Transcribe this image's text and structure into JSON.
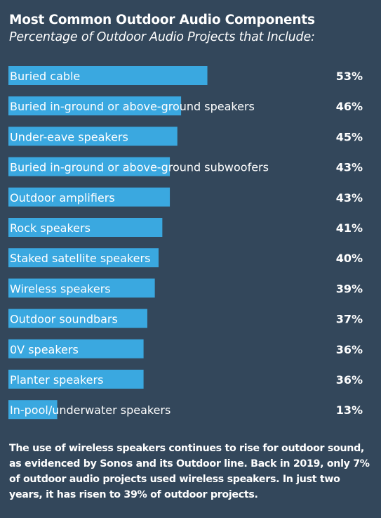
{
  "header": {
    "title": "Most Common Outdoor Audio Components",
    "subtitle": "Percentage of Outdoor Audio Projects that Include:"
  },
  "chart_data": {
    "type": "bar",
    "orientation": "horizontal",
    "categories": [
      "Buried cable",
      "Buried in-ground or above-ground speakers",
      "Under-eave speakers",
      "Buried in-ground or above-ground subwoofers",
      "Outdoor amplifiers",
      "Rock speakers",
      "Staked satellite speakers",
      "Wireless speakers",
      "Outdoor soundbars",
      "0V speakers",
      "Planter speakers",
      "In-pool/underwater speakers"
    ],
    "values": [
      53,
      46,
      45,
      43,
      43,
      41,
      40,
      39,
      37,
      36,
      36,
      13
    ],
    "value_labels": [
      "53%",
      "46%",
      "45%",
      "43%",
      "43%",
      "41%",
      "40%",
      "39%",
      "37%",
      "36%",
      "36%",
      "13%"
    ],
    "unit": "%",
    "bar_color": "#3aa8e0",
    "background_color": "#33475b",
    "grid": false,
    "legend": "none"
  },
  "footnote": "The use of wireless speakers continues to rise for outdoor sound, as evidenced by Sonos and its Outdoor line. Back in 2019, only 7% of outdoor audio projects used wireless speakers. In just two years, it has risen to 39% of outdoor projects."
}
